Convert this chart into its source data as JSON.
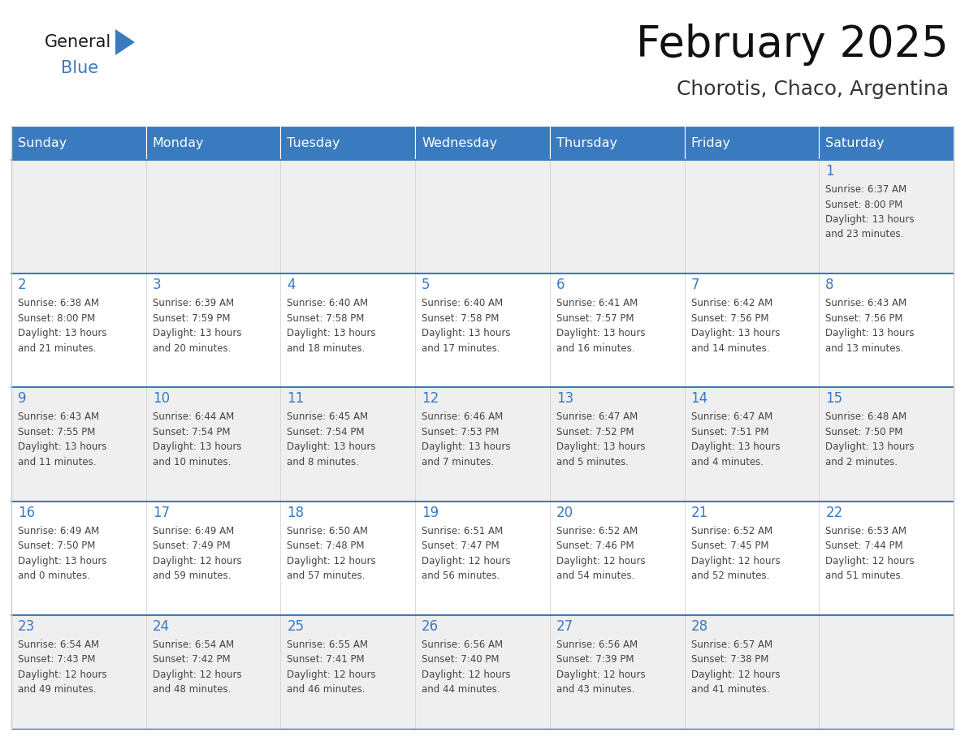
{
  "title": "February 2025",
  "subtitle": "Chorotis, Chaco, Argentina",
  "header_bg": "#3A7ABF",
  "header_text": "#FFFFFF",
  "cell_bg_light": "#EFEFEF",
  "cell_bg_white": "#FFFFFF",
  "cell_border_blue": "#3A7ABF",
  "cell_border_gray": "#CCCCCC",
  "day_number_color": "#3A7ABF",
  "day_text_color": "#444444",
  "header_days": [
    "Sunday",
    "Monday",
    "Tuesday",
    "Wednesday",
    "Thursday",
    "Friday",
    "Saturday"
  ],
  "weeks": [
    [
      {
        "day": 0,
        "text": ""
      },
      {
        "day": 0,
        "text": ""
      },
      {
        "day": 0,
        "text": ""
      },
      {
        "day": 0,
        "text": ""
      },
      {
        "day": 0,
        "text": ""
      },
      {
        "day": 0,
        "text": ""
      },
      {
        "day": 1,
        "text": "Sunrise: 6:37 AM\nSunset: 8:00 PM\nDaylight: 13 hours\nand 23 minutes."
      }
    ],
    [
      {
        "day": 2,
        "text": "Sunrise: 6:38 AM\nSunset: 8:00 PM\nDaylight: 13 hours\nand 21 minutes."
      },
      {
        "day": 3,
        "text": "Sunrise: 6:39 AM\nSunset: 7:59 PM\nDaylight: 13 hours\nand 20 minutes."
      },
      {
        "day": 4,
        "text": "Sunrise: 6:40 AM\nSunset: 7:58 PM\nDaylight: 13 hours\nand 18 minutes."
      },
      {
        "day": 5,
        "text": "Sunrise: 6:40 AM\nSunset: 7:58 PM\nDaylight: 13 hours\nand 17 minutes."
      },
      {
        "day": 6,
        "text": "Sunrise: 6:41 AM\nSunset: 7:57 PM\nDaylight: 13 hours\nand 16 minutes."
      },
      {
        "day": 7,
        "text": "Sunrise: 6:42 AM\nSunset: 7:56 PM\nDaylight: 13 hours\nand 14 minutes."
      },
      {
        "day": 8,
        "text": "Sunrise: 6:43 AM\nSunset: 7:56 PM\nDaylight: 13 hours\nand 13 minutes."
      }
    ],
    [
      {
        "day": 9,
        "text": "Sunrise: 6:43 AM\nSunset: 7:55 PM\nDaylight: 13 hours\nand 11 minutes."
      },
      {
        "day": 10,
        "text": "Sunrise: 6:44 AM\nSunset: 7:54 PM\nDaylight: 13 hours\nand 10 minutes."
      },
      {
        "day": 11,
        "text": "Sunrise: 6:45 AM\nSunset: 7:54 PM\nDaylight: 13 hours\nand 8 minutes."
      },
      {
        "day": 12,
        "text": "Sunrise: 6:46 AM\nSunset: 7:53 PM\nDaylight: 13 hours\nand 7 minutes."
      },
      {
        "day": 13,
        "text": "Sunrise: 6:47 AM\nSunset: 7:52 PM\nDaylight: 13 hours\nand 5 minutes."
      },
      {
        "day": 14,
        "text": "Sunrise: 6:47 AM\nSunset: 7:51 PM\nDaylight: 13 hours\nand 4 minutes."
      },
      {
        "day": 15,
        "text": "Sunrise: 6:48 AM\nSunset: 7:50 PM\nDaylight: 13 hours\nand 2 minutes."
      }
    ],
    [
      {
        "day": 16,
        "text": "Sunrise: 6:49 AM\nSunset: 7:50 PM\nDaylight: 13 hours\nand 0 minutes."
      },
      {
        "day": 17,
        "text": "Sunrise: 6:49 AM\nSunset: 7:49 PM\nDaylight: 12 hours\nand 59 minutes."
      },
      {
        "day": 18,
        "text": "Sunrise: 6:50 AM\nSunset: 7:48 PM\nDaylight: 12 hours\nand 57 minutes."
      },
      {
        "day": 19,
        "text": "Sunrise: 6:51 AM\nSunset: 7:47 PM\nDaylight: 12 hours\nand 56 minutes."
      },
      {
        "day": 20,
        "text": "Sunrise: 6:52 AM\nSunset: 7:46 PM\nDaylight: 12 hours\nand 54 minutes."
      },
      {
        "day": 21,
        "text": "Sunrise: 6:52 AM\nSunset: 7:45 PM\nDaylight: 12 hours\nand 52 minutes."
      },
      {
        "day": 22,
        "text": "Sunrise: 6:53 AM\nSunset: 7:44 PM\nDaylight: 12 hours\nand 51 minutes."
      }
    ],
    [
      {
        "day": 23,
        "text": "Sunrise: 6:54 AM\nSunset: 7:43 PM\nDaylight: 12 hours\nand 49 minutes."
      },
      {
        "day": 24,
        "text": "Sunrise: 6:54 AM\nSunset: 7:42 PM\nDaylight: 12 hours\nand 48 minutes."
      },
      {
        "day": 25,
        "text": "Sunrise: 6:55 AM\nSunset: 7:41 PM\nDaylight: 12 hours\nand 46 minutes."
      },
      {
        "day": 26,
        "text": "Sunrise: 6:56 AM\nSunset: 7:40 PM\nDaylight: 12 hours\nand 44 minutes."
      },
      {
        "day": 27,
        "text": "Sunrise: 6:56 AM\nSunset: 7:39 PM\nDaylight: 12 hours\nand 43 minutes."
      },
      {
        "day": 28,
        "text": "Sunrise: 6:57 AM\nSunset: 7:38 PM\nDaylight: 12 hours\nand 41 minutes."
      },
      {
        "day": 0,
        "text": ""
      }
    ]
  ],
  "logo_general_color": "#1a1a1a",
  "logo_blue_color": "#3A7ABF",
  "fig_bg": "#FFFFFF",
  "figsize": [
    11.88,
    9.18
  ],
  "dpi": 100
}
